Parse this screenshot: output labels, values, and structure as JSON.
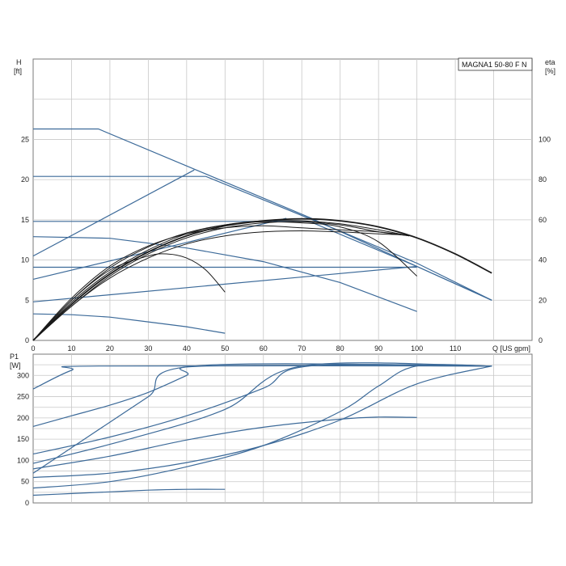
{
  "chart_data": [
    {
      "type": "line",
      "name": "head-efficiency",
      "legend": "MAGNA1 50-80 F N",
      "y_left_label": [
        "H",
        "[ft]"
      ],
      "y_right_label": [
        "eta",
        "[%]"
      ],
      "x_label": "Q [US gpm]",
      "x_ticks": [
        "0",
        "10",
        "20",
        "30",
        "40",
        "50",
        "60",
        "70",
        "80",
        "90",
        "100",
        "110"
      ],
      "y_left_ticks": [
        "0",
        "5",
        "10",
        "15",
        "20",
        "25"
      ],
      "y_right_ticks": [
        "0",
        "20",
        "40",
        "60",
        "80",
        "100"
      ],
      "xlim": [
        0,
        130
      ],
      "ylim_left": [
        0,
        35
      ],
      "ylim_right": [
        0,
        140
      ],
      "grid": true,
      "colors": {
        "pump": "#3c6a99",
        "eff": "#1a1a1a"
      },
      "pump_curves": [
        {
          "x": [
            0,
            17,
            45,
            72,
            100,
            119.5
          ],
          "y": [
            26.3,
            26.3,
            20.7,
            15.3,
            9.2,
            5.0
          ]
        },
        {
          "x": [
            0,
            45,
            80,
            100,
            119.5
          ],
          "y": [
            20.4,
            20.4,
            13.6,
            9.6,
            5.0
          ]
        },
        {
          "x": [
            0,
            72,
            100,
            119.5
          ],
          "y": [
            14.8,
            14.8,
            9.2,
            5.0
          ]
        },
        {
          "x": [
            0,
            97,
            100
          ],
          "y": [
            9.1,
            9.1,
            9.1
          ]
        },
        {
          "x": [
            0,
            20,
            40,
            60,
            80,
            100
          ],
          "y": [
            12.9,
            12.7,
            11.5,
            9.8,
            7.2,
            3.6
          ]
        },
        {
          "x": [
            0,
            10,
            20,
            30,
            40,
            50
          ],
          "y": [
            3.3,
            3.2,
            2.9,
            2.3,
            1.7,
            0.9
          ]
        },
        {
          "x": [
            0,
            42
          ],
          "y": [
            10.5,
            21.2
          ]
        },
        {
          "x": [
            0,
            35,
            66
          ],
          "y": [
            7.6,
            11.6,
            15.2
          ]
        },
        {
          "x": [
            0,
            100
          ],
          "y": [
            4.8,
            9.2
          ]
        }
      ],
      "efficiency_curves": [
        {
          "x": [
            0,
            10,
            20,
            30,
            40,
            50,
            60,
            70,
            80,
            90,
            100,
            110,
            119.5
          ],
          "y": [
            0,
            18,
            33,
            44,
            52,
            57,
            59.5,
            60.5,
            59.5,
            56.5,
            51,
            43,
            33.5
          ]
        },
        {
          "x": [
            0,
            10,
            20,
            30,
            40,
            50,
            60,
            70,
            80,
            90,
            98
          ],
          "y": [
            0,
            19,
            34,
            45,
            53,
            57.5,
            59.5,
            59.5,
            58,
            55,
            52
          ]
        },
        {
          "x": [
            0,
            10,
            20,
            30,
            40,
            50,
            60,
            70,
            80,
            90,
            100
          ],
          "y": [
            0,
            20,
            36,
            46.5,
            53.5,
            57.5,
            59,
            58.5,
            56.5,
            49,
            32
          ]
        },
        {
          "x": [
            0,
            10,
            20,
            30,
            40,
            50,
            60,
            70,
            80,
            90,
            98
          ],
          "y": [
            0,
            21,
            37,
            47,
            53,
            56,
            57,
            56,
            55,
            54,
            52
          ]
        },
        {
          "x": [
            0,
            10,
            20,
            30,
            40,
            50,
            60,
            70,
            80,
            90,
            97
          ],
          "y": [
            0,
            17,
            31,
            41,
            48,
            52,
            54,
            54.5,
            54,
            53,
            52.5
          ]
        },
        {
          "x": [
            0,
            10,
            20,
            30,
            35,
            40,
            45,
            50
          ],
          "y": [
            0,
            20,
            35,
            42,
            43,
            41,
            35,
            24
          ]
        },
        {
          "x": [
            0,
            10,
            20,
            30,
            40,
            50,
            60,
            70,
            80,
            90,
            98
          ],
          "y": [
            0,
            17,
            32,
            43,
            51,
            56,
            58.5,
            59,
            57.5,
            54,
            52
          ]
        }
      ]
    },
    {
      "type": "line",
      "name": "power",
      "y_label": [
        "P1",
        "[W]"
      ],
      "y_ticks": [
        "0",
        "50",
        "100",
        "150",
        "200",
        "250",
        "300"
      ],
      "xlim": [
        0,
        130
      ],
      "ylim": [
        0,
        350
      ],
      "grid": true,
      "colors": {
        "pump": "#3c6a99"
      },
      "power_curves": [
        {
          "x": [
            0,
            10,
            17,
            119.5
          ],
          "y": [
            268,
            312,
            322,
            322
          ]
        },
        {
          "x": [
            0,
            10,
            20,
            30,
            40,
            45,
            119.5
          ],
          "y": [
            180,
            205,
            230,
            260,
            300,
            322,
            322
          ]
        },
        {
          "x": [
            0,
            20,
            40,
            60,
            72,
            119.5
          ],
          "y": [
            115,
            155,
            205,
            270,
            322,
            322
          ]
        },
        {
          "x": [
            0,
            20,
            40,
            60,
            80,
            100,
            119.5
          ],
          "y": [
            60,
            70,
            95,
            135,
            195,
            280,
            322
          ]
        },
        {
          "x": [
            0,
            20,
            40,
            60,
            80,
            90,
            100,
            119.5
          ],
          "y": [
            35,
            50,
            85,
            135,
            215,
            275,
            322,
            322
          ]
        },
        {
          "x": [
            0,
            20,
            40,
            60,
            80,
            90,
            100
          ],
          "y": [
            80,
            110,
            148,
            178,
            197,
            202,
            201
          ]
        },
        {
          "x": [
            0,
            15,
            30,
            42,
            119.5
          ],
          "y": [
            70,
            160,
            250,
            322,
            322
          ]
        },
        {
          "x": [
            0,
            25,
            50,
            70,
            119.5
          ],
          "y": [
            93,
            150,
            220,
            322,
            322
          ]
        },
        {
          "x": [
            0,
            10,
            20,
            30,
            40,
            50
          ],
          "y": [
            18,
            22,
            26,
            30,
            32,
            32
          ]
        }
      ]
    }
  ]
}
